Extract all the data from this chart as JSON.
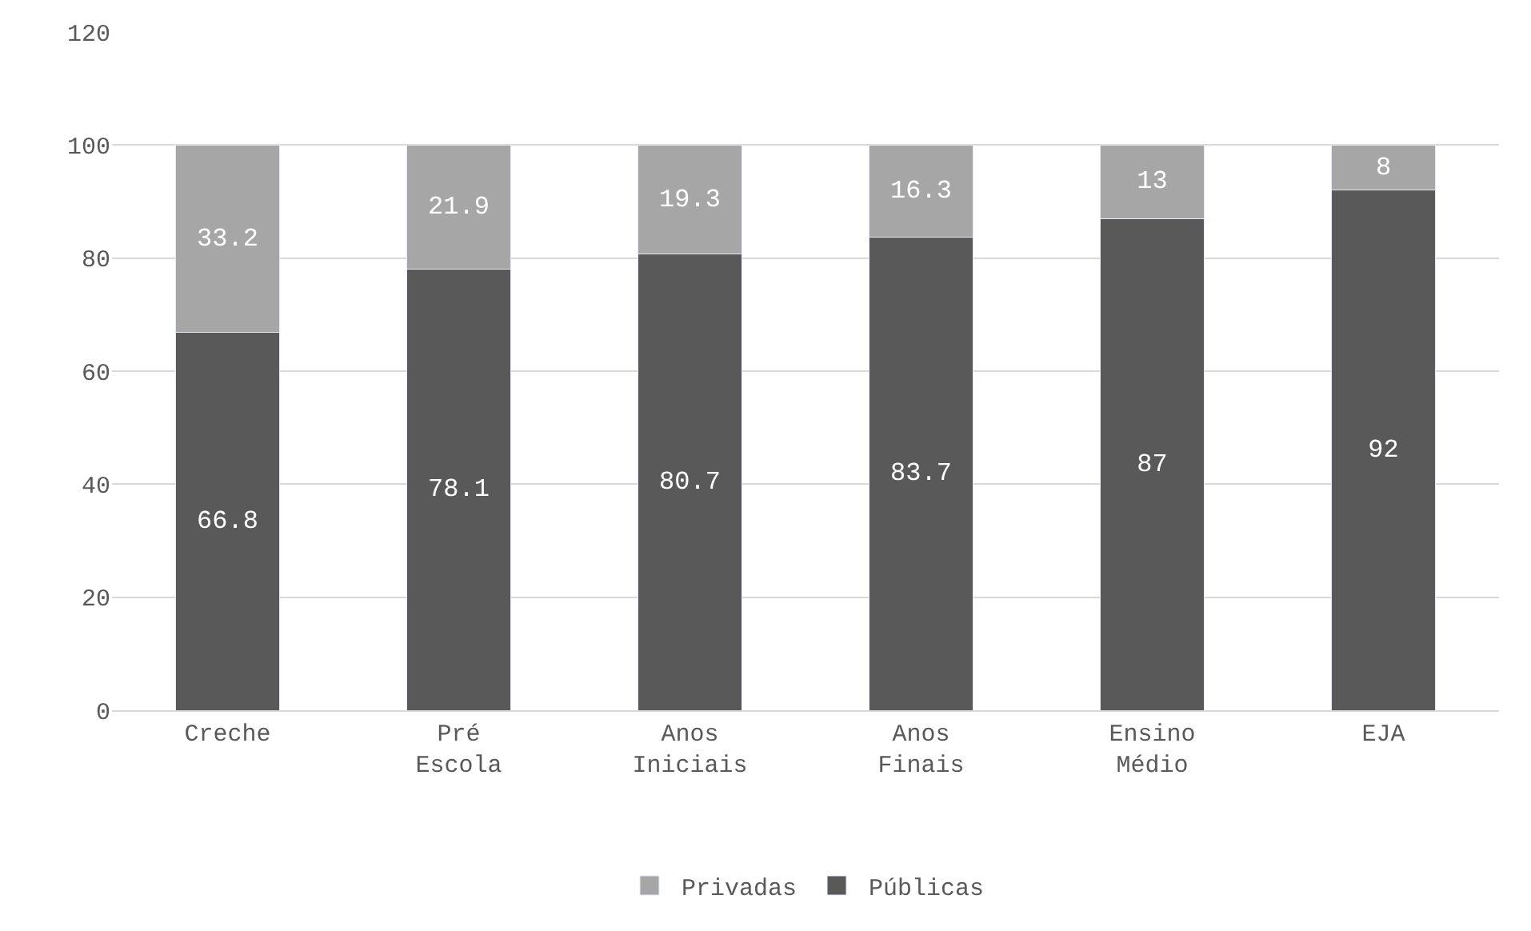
{
  "chart_data": {
    "type": "bar",
    "stacked": true,
    "categories": [
      "Creche",
      "Pré Escola",
      "Anos Iniciais",
      "Anos Finais",
      "Ensino Médio",
      "EJA"
    ],
    "series": [
      {
        "name": "Públicas",
        "color": "#595959",
        "values": [
          66.8,
          78.1,
          80.7,
          83.7,
          87,
          92
        ]
      },
      {
        "name": "Privadas",
        "color": "#a6a6a6",
        "values": [
          33.2,
          21.9,
          19.3,
          16.3,
          13,
          8
        ]
      }
    ],
    "ylim": [
      0,
      120
    ],
    "yticks": [
      0,
      20,
      40,
      60,
      80,
      100,
      120
    ],
    "grid": "y",
    "legend": "bottom",
    "data_labels": true
  }
}
